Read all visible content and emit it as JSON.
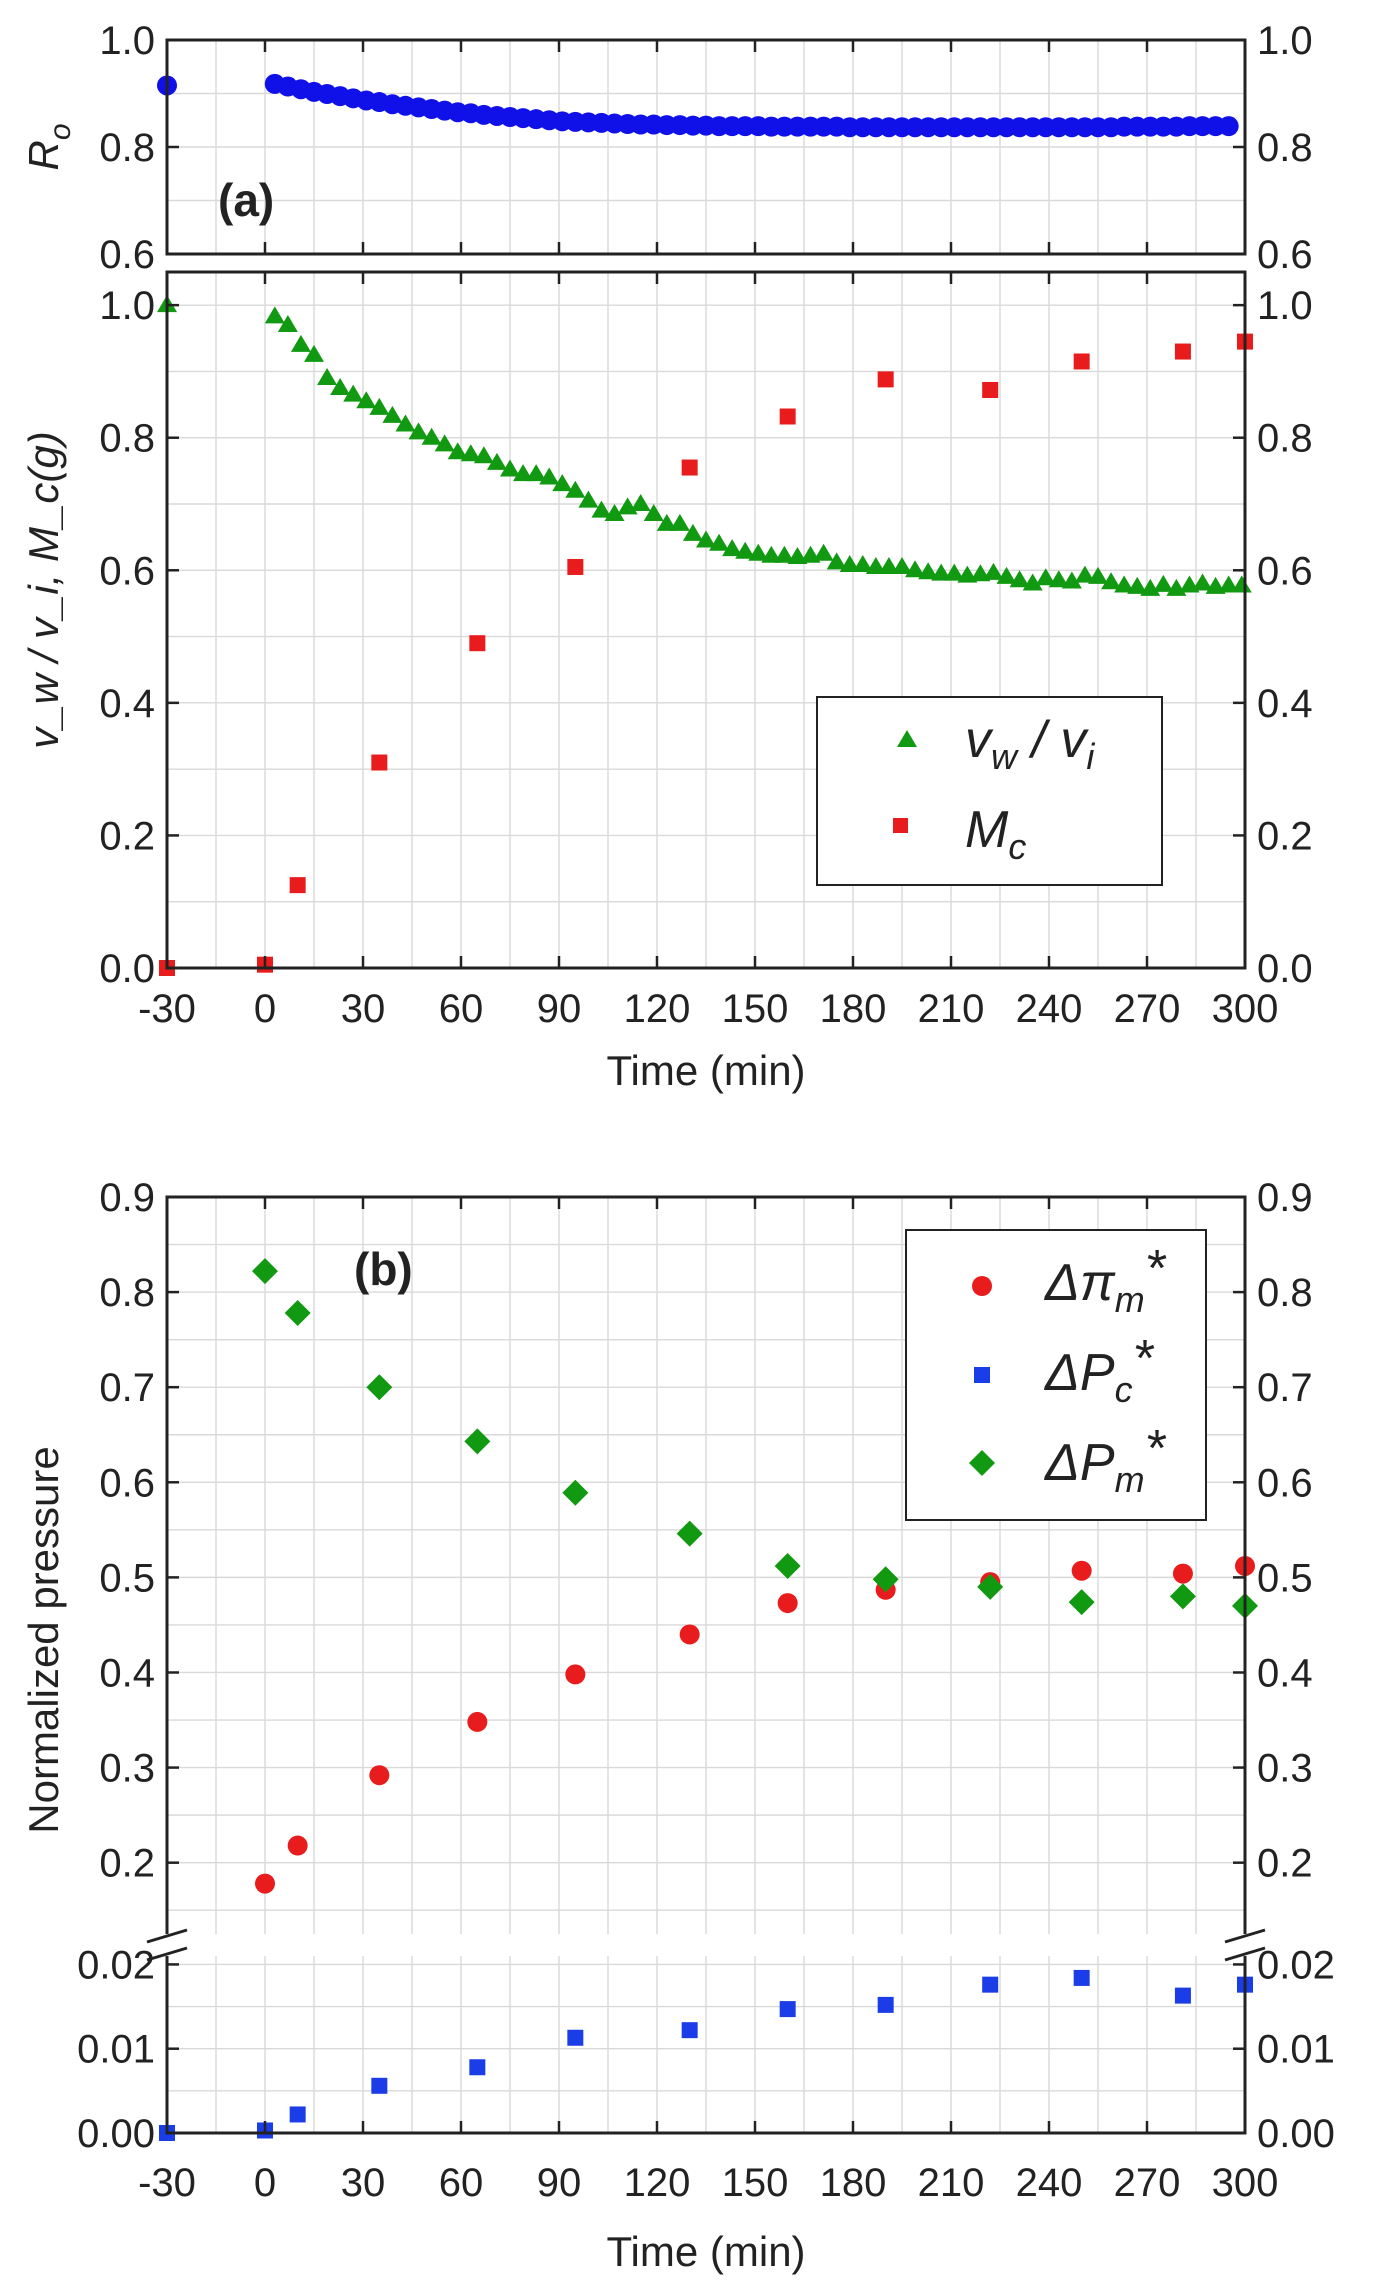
{
  "chart_data": [
    {
      "id": "a-top",
      "type": "scatter",
      "panel_label": "(a)",
      "ylabel": "R",
      "ylabel_sub": "o",
      "ylim": [
        0.6,
        1.0
      ],
      "yticks": [
        0.6,
        0.8,
        1.0
      ],
      "ytick_labels": [
        "0.6",
        "0.8",
        "1.0"
      ],
      "xlim": [
        -30,
        300
      ],
      "series": [
        {
          "name": "R_o",
          "color": "#1010e8",
          "marker": "circle",
          "x": [
            -30,
            3,
            7,
            11,
            15,
            19,
            23,
            27,
            31,
            35,
            39,
            43,
            47,
            51,
            55,
            59,
            63,
            67,
            71,
            75,
            79,
            83,
            87,
            91,
            95,
            99,
            103,
            107,
            111,
            115,
            119,
            123,
            127,
            131,
            135,
            139,
            143,
            147,
            151,
            155,
            159,
            163,
            167,
            171,
            175,
            179,
            183,
            187,
            191,
            195,
            199,
            203,
            207,
            211,
            215,
            219,
            223,
            227,
            231,
            235,
            239,
            243,
            247,
            251,
            255,
            259,
            263,
            267,
            271,
            275,
            279,
            283,
            287,
            291,
            295
          ],
          "y": [
            0.915,
            0.918,
            0.913,
            0.908,
            0.903,
            0.899,
            0.895,
            0.891,
            0.887,
            0.884,
            0.88,
            0.877,
            0.874,
            0.871,
            0.868,
            0.865,
            0.863,
            0.86,
            0.858,
            0.856,
            0.854,
            0.852,
            0.85,
            0.848,
            0.847,
            0.846,
            0.845,
            0.844,
            0.843,
            0.842,
            0.842,
            0.841,
            0.841,
            0.84,
            0.84,
            0.839,
            0.839,
            0.839,
            0.839,
            0.838,
            0.838,
            0.838,
            0.838,
            0.838,
            0.838,
            0.837,
            0.837,
            0.837,
            0.837,
            0.837,
            0.837,
            0.837,
            0.837,
            0.837,
            0.837,
            0.837,
            0.837,
            0.837,
            0.837,
            0.837,
            0.837,
            0.837,
            0.837,
            0.837,
            0.837,
            0.837,
            0.838,
            0.838,
            0.838,
            0.838,
            0.838,
            0.839,
            0.839,
            0.839,
            0.839
          ]
        }
      ]
    },
    {
      "id": "a-bottom",
      "type": "scatter",
      "ylabel": "v_w / v_i, M_c(g)",
      "xlabel": "Time (min)",
      "ylim": [
        0,
        1.05
      ],
      "yticks": [
        0,
        0.2,
        0.4,
        0.6,
        0.8,
        1.0
      ],
      "ytick_labels": [
        "0.0",
        "0.2",
        "0.4",
        "0.6",
        "0.8",
        "1.0"
      ],
      "xlim": [
        -30,
        300
      ],
      "xticks": [
        -30,
        0,
        30,
        60,
        90,
        120,
        150,
        180,
        210,
        240,
        270,
        300
      ],
      "xtick_labels": [
        "-30",
        "0",
        "30",
        "60",
        "90",
        "120",
        "150",
        "180",
        "210",
        "240",
        "270",
        "300"
      ],
      "legend": [
        {
          "series": "v_w / v_i",
          "main": "v",
          "sub1": "w",
          "mid": " / v",
          "sub2": "i"
        },
        {
          "series": "M_c",
          "main": "M",
          "sub1": "c",
          "mid": "",
          "sub2": ""
        }
      ],
      "series": [
        {
          "name": "v_w / v_i",
          "color": "#119911",
          "marker": "triangle",
          "x": [
            -30,
            3,
            7,
            11,
            15,
            19,
            23,
            27,
            31,
            35,
            39,
            43,
            47,
            51,
            55,
            59,
            63,
            67,
            71,
            75,
            79,
            83,
            87,
            91,
            95,
            99,
            103,
            107,
            111,
            115,
            119,
            123,
            127,
            131,
            135,
            139,
            143,
            147,
            151,
            155,
            159,
            163,
            167,
            171,
            175,
            179,
            183,
            187,
            191,
            195,
            199,
            203,
            207,
            211,
            215,
            219,
            223,
            227,
            231,
            235,
            239,
            243,
            247,
            251,
            255,
            259,
            263,
            267,
            271,
            275,
            279,
            283,
            287,
            291,
            295,
            299
          ],
          "y": [
            1.0,
            0.983,
            0.97,
            0.94,
            0.925,
            0.89,
            0.875,
            0.865,
            0.855,
            0.845,
            0.833,
            0.82,
            0.808,
            0.8,
            0.79,
            0.778,
            0.775,
            0.772,
            0.762,
            0.752,
            0.745,
            0.745,
            0.74,
            0.73,
            0.72,
            0.705,
            0.69,
            0.685,
            0.695,
            0.7,
            0.685,
            0.67,
            0.67,
            0.655,
            0.645,
            0.64,
            0.632,
            0.628,
            0.625,
            0.622,
            0.622,
            0.62,
            0.622,
            0.625,
            0.612,
            0.608,
            0.608,
            0.605,
            0.605,
            0.605,
            0.6,
            0.597,
            0.595,
            0.595,
            0.592,
            0.594,
            0.596,
            0.59,
            0.585,
            0.58,
            0.588,
            0.585,
            0.583,
            0.592,
            0.59,
            0.582,
            0.577,
            0.575,
            0.572,
            0.578,
            0.572,
            0.577,
            0.58,
            0.575,
            0.577,
            0.577
          ]
        },
        {
          "name": "M_c",
          "color": "#e81c1c",
          "marker": "square",
          "x": [
            -30,
            0,
            10,
            35,
            65,
            95,
            130,
            160,
            190,
            222,
            250,
            281,
            300
          ],
          "y": [
            0.0,
            0.005,
            0.125,
            0.31,
            0.49,
            0.605,
            0.755,
            0.832,
            0.888,
            0.872,
            0.915,
            0.93,
            0.945
          ]
        }
      ]
    },
    {
      "id": "b",
      "type": "scatter",
      "panel_label": "(b)",
      "xlabel": "Time (min)",
      "ylabel": "Normalized pressure",
      "xlim": [
        -30,
        300
      ],
      "xticks": [
        -30,
        0,
        30,
        60,
        90,
        120,
        150,
        180,
        210,
        240,
        270,
        300
      ],
      "xtick_labels": [
        "-30",
        "0",
        "30",
        "60",
        "90",
        "120",
        "150",
        "180",
        "210",
        "240",
        "270",
        "300"
      ],
      "y_axis_break": {
        "upper_ylim": [
          0.125,
          0.9
        ],
        "upper_yticks": [
          0.2,
          0.3,
          0.4,
          0.5,
          0.6,
          0.7,
          0.8,
          0.9
        ],
        "upper_ytick_labels": [
          "0.2",
          "0.3",
          "0.4",
          "0.5",
          "0.6",
          "0.7",
          "0.8",
          "0.9"
        ],
        "lower_ylim": [
          0.0,
          0.021
        ],
        "lower_yticks": [
          0.0,
          0.01,
          0.02
        ],
        "lower_ytick_labels": [
          "0.00",
          "0.01",
          "0.02"
        ]
      },
      "legend": [
        {
          "series": "Δπ_m*",
          "main": "Δπ",
          "sub1": "m",
          "tail": "*"
        },
        {
          "series": "ΔP_c*",
          "main": "ΔP",
          "sub1": "c",
          "tail": "*"
        },
        {
          "series": "ΔP_m*",
          "main": "ΔP",
          "sub1": "m",
          "tail": "*"
        }
      ],
      "series": [
        {
          "name": "Δπ_m*",
          "color": "#e81c1c",
          "marker": "circle",
          "segment": "upper",
          "x": [
            0,
            10,
            35,
            65,
            95,
            130,
            160,
            190,
            222,
            250,
            281,
            300
          ],
          "y": [
            0.178,
            0.218,
            0.292,
            0.348,
            0.398,
            0.44,
            0.473,
            0.487,
            0.495,
            0.507,
            0.504,
            0.512
          ]
        },
        {
          "name": "ΔP_c*",
          "color": "#1a3de8",
          "marker": "square",
          "segment": "lower",
          "x": [
            -30,
            0,
            10,
            35,
            65,
            95,
            130,
            160,
            190,
            222,
            250,
            281,
            300
          ],
          "y": [
            0.0,
            0.0003,
            0.0022,
            0.0056,
            0.0078,
            0.0113,
            0.0122,
            0.0147,
            0.0152,
            0.0176,
            0.0184,
            0.0163,
            0.0176
          ]
        },
        {
          "name": "ΔP_m*",
          "color": "#119911",
          "marker": "diamond",
          "segment": "upper",
          "x": [
            0,
            10,
            35,
            65,
            95,
            130,
            160,
            190,
            222,
            250,
            281,
            300
          ],
          "y": [
            0.822,
            0.778,
            0.7,
            0.643,
            0.589,
            0.546,
            0.512,
            0.498,
            0.49,
            0.474,
            0.48,
            0.47
          ]
        }
      ]
    }
  ]
}
